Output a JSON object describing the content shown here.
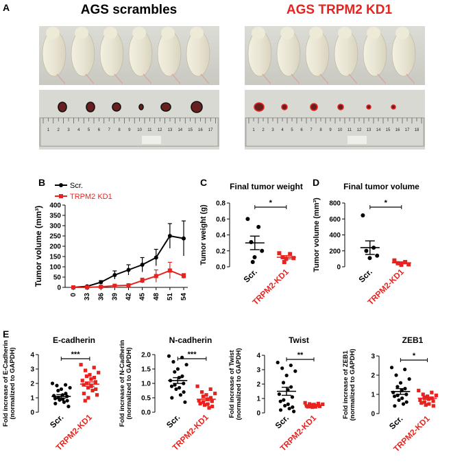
{
  "panels": {
    "a": {
      "label": "A",
      "title_left": "AGS scrambles",
      "title_right": "AGS TRPM2 KD1",
      "ruler_left": [
        "1",
        "2",
        "3",
        "4",
        "5",
        "6",
        "7",
        "8",
        "9",
        "10",
        "11",
        "12",
        "13",
        "14",
        "15",
        "16",
        "17"
      ],
      "ruler_right": [
        "1",
        "2",
        "3",
        "4",
        "5",
        "6",
        "7",
        "8",
        "9",
        "10",
        "11",
        "12",
        "13",
        "14",
        "15",
        "16",
        "17",
        "18"
      ]
    },
    "b": {
      "label": "B"
    },
    "c": {
      "label": "C"
    },
    "d": {
      "label": "D"
    },
    "e": {
      "label": "E"
    }
  },
  "colors": {
    "scr": "#000000",
    "kd": "#e8231f",
    "title_kd": "#e8231f"
  },
  "chart_data": [
    {
      "id": "B",
      "type": "line",
      "title": "",
      "xlabel": "",
      "ylabel": "Tumor volume (mm³)",
      "categories": [
        "0",
        "33",
        "36",
        "39",
        "42",
        "45",
        "48",
        "51",
        "54"
      ],
      "ylim": [
        0,
        400
      ],
      "yticks": [
        "0",
        "50",
        "100",
        "150",
        "200",
        "250",
        "300",
        "350",
        "400"
      ],
      "legend": "top-left",
      "series": [
        {
          "name": "Scr.",
          "values": [
            0,
            5,
            25,
            60,
            85,
            110,
            145,
            250,
            238
          ],
          "errors": [
            0,
            3,
            8,
            20,
            25,
            35,
            40,
            60,
            85
          ]
        },
        {
          "name": "TRPM2 KD1",
          "values": [
            0,
            0,
            3,
            8,
            10,
            33,
            55,
            82,
            55
          ],
          "errors": [
            0,
            0,
            3,
            5,
            6,
            12,
            30,
            40,
            12
          ]
        }
      ]
    },
    {
      "id": "C",
      "type": "scatter",
      "title": "Final tumor weight",
      "ylabel": "Tumor weight (g)",
      "categories": [
        "Scr.",
        "TRPM2-KD1"
      ],
      "ylim": [
        0,
        0.8
      ],
      "yticks": [
        "0.0",
        "0.2",
        "0.4",
        "0.6",
        "0.8"
      ],
      "significance": "*",
      "groups": [
        {
          "name": "Scr.",
          "points": [
            0.6,
            0.5,
            0.31,
            0.2,
            0.12,
            0.06
          ],
          "mean": 0.3,
          "sem": 0.085
        },
        {
          "name": "TRPM2-KD1",
          "points": [
            0.17,
            0.16,
            0.12,
            0.11,
            0.1,
            0.06
          ],
          "mean": 0.12,
          "sem": 0.02
        }
      ]
    },
    {
      "id": "D",
      "type": "scatter",
      "title": "Final tumor volume",
      "ylabel": "Tumor volume (mm³)",
      "categories": [
        "Scr.",
        "TRPM2-KD1"
      ],
      "ylim": [
        0,
        800
      ],
      "yticks": [
        "0",
        "200",
        "400",
        "600",
        "800"
      ],
      "significance": "*",
      "groups": [
        {
          "name": "Scr.",
          "points": [
            645,
            240,
            200,
            140,
            110
          ],
          "mean": 240,
          "sem": 85
        },
        {
          "name": "TRPM2-KD1",
          "points": [
            80,
            60,
            45,
            30,
            25
          ],
          "mean": 50,
          "sem": 12
        }
      ]
    },
    {
      "id": "E1",
      "type": "scatter",
      "title": "E-cadherin",
      "ylabel": "Fold increase of E-Cadherin\n(normalized to GAPDH)",
      "categories": [
        "Scr.",
        "TRPM2-KD1"
      ],
      "ylim": [
        0,
        4
      ],
      "yticks": [
        "0",
        "1",
        "2",
        "3",
        "4"
      ],
      "significance": "***",
      "groups": [
        {
          "name": "Scr.",
          "points": [
            2.0,
            1.9,
            1.85,
            1.7,
            1.6,
            1.5,
            1.3,
            1.2,
            1.15,
            1.1,
            1.0,
            0.95,
            0.9,
            0.85,
            0.8,
            0.7,
            0.6,
            0.4
          ],
          "mean": 1.1,
          "sem": 0.12
        },
        {
          "name": "TRPM2-KD1",
          "points": [
            3.3,
            3.1,
            2.9,
            2.75,
            2.6,
            2.5,
            2.4,
            2.3,
            2.2,
            2.1,
            2.0,
            1.9,
            1.8,
            1.7,
            1.6,
            1.5,
            1.3,
            1.2,
            1.0,
            0.8
          ],
          "mean": 1.95,
          "sem": 0.15
        }
      ]
    },
    {
      "id": "E2",
      "type": "scatter",
      "title": "N-cadherin",
      "ylabel": "Fold increase of N-Cadherin\n(normalized to GAPDH)",
      "categories": [
        "Scr.",
        "TRPM2-KD1"
      ],
      "ylim": [
        0,
        2.0
      ],
      "yticks": [
        "0.0",
        "0.5",
        "1.0",
        "1.5",
        "2.0"
      ],
      "significance": "***",
      "groups": [
        {
          "name": "Scr.",
          "points": [
            1.95,
            1.9,
            1.75,
            1.65,
            1.5,
            1.4,
            1.25,
            1.2,
            1.1,
            1.0,
            0.95,
            0.9,
            0.85,
            0.8,
            0.7,
            0.6,
            0.5,
            0.35
          ],
          "mean": 1.1,
          "sem": 0.1
        },
        {
          "name": "TRPM2-KD1",
          "points": [
            0.9,
            0.8,
            0.7,
            0.65,
            0.6,
            0.55,
            0.5,
            0.45,
            0.4,
            0.38,
            0.35,
            0.3,
            0.28,
            0.25,
            0.2,
            0.15
          ],
          "mean": 0.45,
          "sem": 0.05
        }
      ]
    },
    {
      "id": "E3",
      "type": "scatter",
      "title": "Twist",
      "ylabel": "Fold increase of Twist\n(normalized to GAPDH)",
      "categories": [
        "Scr.",
        "TRPM2-KD1"
      ],
      "ylim": [
        0,
        4
      ],
      "yticks": [
        "0",
        "1",
        "2",
        "3",
        "4"
      ],
      "significance": "**",
      "groups": [
        {
          "name": "Scr.",
          "points": [
            3.5,
            3.3,
            3.1,
            2.9,
            2.6,
            2.1,
            1.8,
            1.6,
            1.3,
            1.1,
            0.9,
            0.8,
            0.6,
            0.5,
            0.4,
            0.3,
            0.2,
            0.1
          ],
          "mean": 1.5,
          "sem": 0.28
        },
        {
          "name": "TRPM2-KD1",
          "points": [
            0.7,
            0.65,
            0.62,
            0.6,
            0.58,
            0.55,
            0.53,
            0.5,
            0.48,
            0.46,
            0.45,
            0.43,
            0.42,
            0.4
          ],
          "mean": 0.52,
          "sem": 0.03
        }
      ]
    },
    {
      "id": "E4",
      "type": "scatter",
      "title": "ZEB1",
      "ylabel": "Fold increase of ZEB1\n(normalized to GAPDH)",
      "categories": [
        "Scr.",
        "TRPM2-KD1"
      ],
      "ylim": [
        0,
        3
      ],
      "yticks": [
        "0",
        "1",
        "2",
        "3"
      ],
      "significance": "*",
      "groups": [
        {
          "name": "Scr.",
          "points": [
            2.4,
            2.3,
            2.0,
            1.8,
            1.6,
            1.4,
            1.3,
            1.2,
            1.1,
            1.0,
            0.95,
            0.9,
            0.8,
            0.7,
            0.6,
            0.5,
            0.4
          ],
          "mean": 1.15,
          "sem": 0.15
        },
        {
          "name": "TRPM2-KD1",
          "points": [
            1.2,
            1.1,
            1.0,
            0.95,
            0.9,
            0.85,
            0.8,
            0.75,
            0.7,
            0.65,
            0.6,
            0.55,
            0.5,
            0.45,
            0.4
          ],
          "mean": 0.8,
          "sem": 0.06
        }
      ]
    }
  ]
}
